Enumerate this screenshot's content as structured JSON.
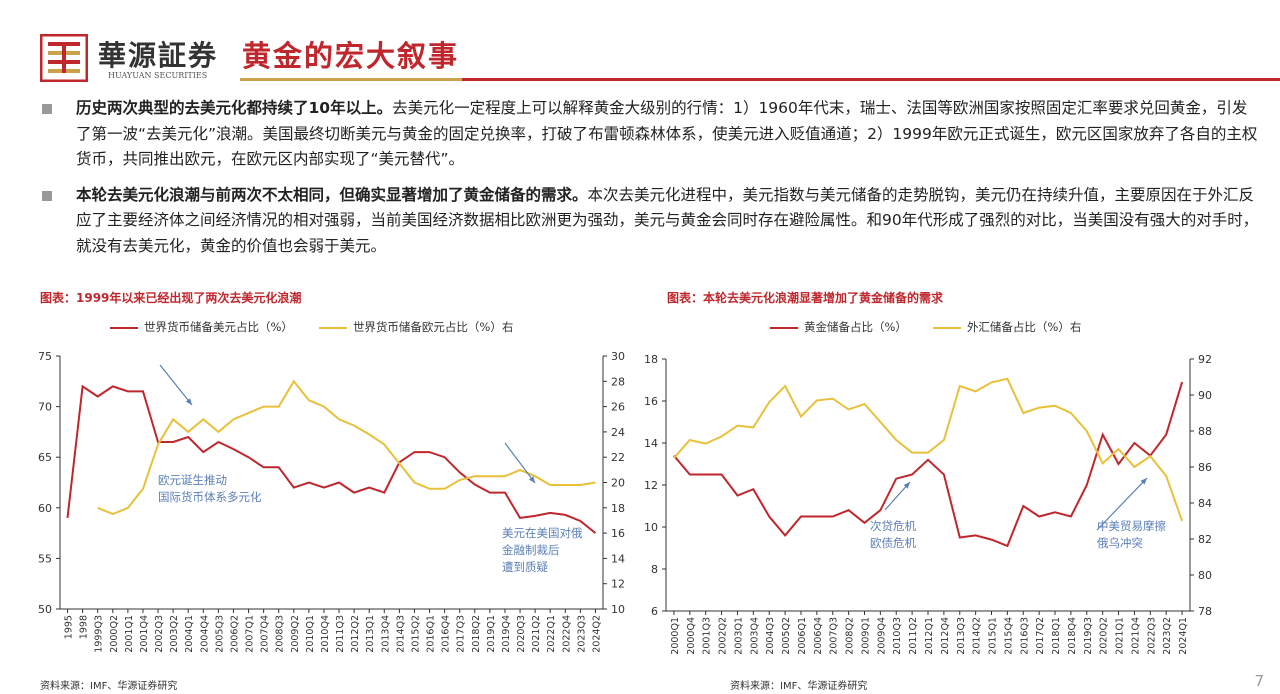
{
  "header": {
    "brand": "華源証券",
    "brand_en": "HUAYUAN SECURITIES",
    "title": "黄金的宏大叙事"
  },
  "bullets": [
    {
      "bold": "历史两次典型的去美元化都持续了10年以上。",
      "text": "去美元化一定程度上可以解释黄金大级别的行情：1）1960年代末，瑞士、法国等欧洲国家按照固定汇率要求兑回黄金，引发了第一波“去美元化”浪潮。美国最终切断美元与黄金的固定兑换率，打破了布雷顿森林体系，使美元进入贬值通道；2）1999年欧元正式诞生，欧元区国家放弃了各自的主权货币，共同推出欧元，在欧元区内部实现了“美元替代”。"
    },
    {
      "bold": "本轮去美元化浪潮与前两次不太相同，但确实显著增加了黄金储备的需求。",
      "text": "本次去美元化进程中，美元指数与美元储备的走势脱钩，美元仍在持续升值，主要原因在于外汇反应了主要经济体之间经济情况的相对强弱，当前美国经济数据相比欧洲更为强劲，美元与黄金会同时存在避险属性。和90年代形成了强烈的对比，当美国没有强大的对手时，就没有去美元化，黄金的价值也会弱于美元。"
    }
  ],
  "colors": {
    "red": "#c0272d",
    "gold": "#e8c03a",
    "accent_gold": "#c9a24a",
    "annotation": "#5b7fb5"
  },
  "chart_data": [
    {
      "type": "line",
      "title": "图表：1999年以来已经出现了两次去美元化浪潮",
      "legend_position": "top",
      "categories": [
        "1995",
        "1998",
        "1999Q3",
        "2000Q2",
        "2001Q1",
        "2001Q4",
        "2002Q3",
        "2003Q2",
        "2004Q1",
        "2004Q4",
        "2005Q3",
        "2006Q2",
        "2007Q1",
        "2007Q4",
        "2008Q3",
        "2009Q2",
        "2010Q1",
        "2010Q4",
        "2011Q3",
        "2012Q2",
        "2013Q1",
        "2013Q4",
        "2014Q3",
        "2015Q2",
        "2016Q1",
        "2016Q4",
        "2017Q3",
        "2018Q2",
        "2019Q1",
        "2019Q4",
        "2020Q3",
        "2021Q2",
        "2022Q1",
        "2022Q4",
        "2023Q3",
        "2024Q2"
      ],
      "ylim": [
        50,
        75
      ],
      "y_ticks": [
        50,
        55,
        60,
        65,
        70,
        75
      ],
      "y2lim": [
        10,
        30
      ],
      "y2_ticks": [
        10,
        12,
        14,
        16,
        18,
        20,
        22,
        24,
        26,
        28,
        30
      ],
      "series": [
        {
          "name": "世界货币储备美元占比（%）",
          "axis": "left",
          "color": "#c0272d",
          "values": [
            59,
            72,
            71,
            72,
            71.5,
            71.5,
            66.5,
            66.5,
            67,
            65.5,
            66.5,
            65.8,
            65,
            64,
            64,
            62,
            62.5,
            62,
            62.5,
            61.5,
            62,
            61.5,
            64.5,
            65.5,
            65.5,
            65,
            63.5,
            62.3,
            61.5,
            61.5,
            59,
            59.2,
            59.5,
            59.3,
            58.7,
            57.5
          ]
        },
        {
          "name": "世界货币储备欧元占比（%）右",
          "axis": "right",
          "color": "#e8c03a",
          "values": [
            null,
            null,
            18,
            17.5,
            18,
            19.5,
            23,
            25,
            24,
            25,
            24,
            25,
            25.5,
            26,
            26,
            28,
            26.5,
            26,
            25,
            24.5,
            23.8,
            23,
            21.5,
            20,
            19.5,
            19.5,
            20.2,
            20.5,
            20.5,
            20.5,
            21,
            20.5,
            19.8,
            19.8,
            19.8,
            20
          ]
        }
      ],
      "annotations": [
        {
          "lines": [
            "欧元诞生推动",
            "国际货币体系多元化"
          ]
        },
        {
          "lines": [
            "美元在美国对俄",
            "金融制裁后",
            "遭到质疑"
          ]
        }
      ],
      "source": "资料来源：IMF、华源证券研究"
    },
    {
      "type": "line",
      "title": "图表：本轮去美元化浪潮显著增加了黄金储备的需求",
      "legend_position": "top",
      "categories": [
        "2000Q1",
        "2000Q4",
        "2001Q3",
        "2002Q2",
        "2003Q1",
        "2003Q4",
        "2004Q3",
        "2005Q2",
        "2006Q1",
        "2006Q4",
        "2007Q3",
        "2008Q2",
        "2009Q1",
        "2009Q4",
        "2010Q3",
        "2011Q2",
        "2012Q1",
        "2012Q4",
        "2013Q3",
        "2014Q2",
        "2015Q1",
        "2015Q4",
        "2016Q3",
        "2017Q2",
        "2018Q1",
        "2018Q4",
        "2019Q3",
        "2020Q2",
        "2021Q1",
        "2021Q4",
        "2022Q3",
        "2023Q2",
        "2024Q1"
      ],
      "ylim": [
        6,
        18
      ],
      "y_ticks": [
        6,
        8,
        10,
        12,
        14,
        16,
        18
      ],
      "y2lim": [
        78,
        92
      ],
      "y2_ticks": [
        78,
        80,
        82,
        84,
        86,
        88,
        90,
        92
      ],
      "series": [
        {
          "name": "黄金储备占比（%）",
          "axis": "left",
          "color": "#c0272d",
          "values": [
            13.4,
            12.5,
            12.5,
            12.5,
            11.5,
            11.8,
            10.5,
            9.6,
            10.5,
            10.5,
            10.5,
            10.8,
            10.2,
            10.8,
            12.3,
            12.5,
            13.2,
            12.5,
            9.5,
            9.6,
            9.4,
            9.1,
            11.0,
            10.5,
            10.7,
            10.5,
            12.0,
            14.4,
            13.0,
            14.0,
            13.4,
            14.4,
            16.9
          ]
        },
        {
          "name": "外汇储备占比（%）右",
          "axis": "right",
          "color": "#e8c03a",
          "values": [
            86.5,
            87.5,
            87.3,
            87.7,
            88.3,
            88.2,
            89.6,
            90.5,
            88.8,
            89.7,
            89.8,
            89.2,
            89.5,
            88.5,
            87.5,
            86.8,
            86.8,
            87.5,
            90.5,
            90.2,
            90.7,
            90.9,
            89,
            89.3,
            89.4,
            89,
            88,
            86.2,
            87,
            86,
            86.6,
            85.5,
            83
          ]
        }
      ],
      "annotations": [
        {
          "lines": [
            "次贷危机",
            "欧债危机"
          ]
        },
        {
          "lines": [
            "中美贸易摩擦",
            "俄乌冲突"
          ]
        }
      ],
      "source": "资料来源：IMF、华源证券研究"
    }
  ],
  "page_number": "7"
}
